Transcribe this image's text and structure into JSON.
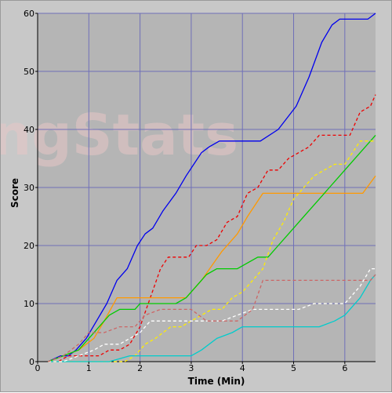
{
  "chart_data": {
    "type": "line",
    "title": "",
    "xlabel": "Time (Min)",
    "ylabel": "Score",
    "xlim": [
      0,
      6.6
    ],
    "ylim": [
      0,
      60
    ],
    "xticks": [
      0,
      1,
      2,
      3,
      4,
      5,
      6
    ],
    "yticks": [
      0,
      10,
      20,
      30,
      40,
      50,
      60
    ],
    "grid": true,
    "legend": "none",
    "watermark": "ngStats",
    "colors": {
      "background": "#c8c8c8",
      "plot_area": "#b5b5b5",
      "grid": "#6f6fb8"
    },
    "series": [
      {
        "color": "#0000ee",
        "dash": "solid",
        "x": [
          0.2,
          0.45,
          0.6,
          0.75,
          0.95,
          1.15,
          1.35,
          1.55,
          1.75,
          1.95,
          2.1,
          2.25,
          2.45,
          2.7,
          2.9,
          3.05,
          3.2,
          3.35,
          3.55,
          4.0,
          4.35,
          4.7,
          5.05,
          5.3,
          5.55,
          5.75,
          5.9,
          6.3,
          6.45,
          6.6
        ],
        "y": [
          0,
          1,
          1,
          2,
          4,
          7,
          10,
          14,
          16,
          20,
          22,
          23,
          26,
          29,
          32,
          34,
          36,
          37,
          38,
          38,
          38,
          40,
          44,
          49,
          55,
          58,
          59,
          59,
          59,
          60
        ]
      },
      {
        "color": "#ee0000",
        "dash": "dashed",
        "x": [
          0.2,
          0.4,
          0.6,
          0.8,
          1.0,
          1.2,
          1.4,
          1.6,
          1.8,
          2.0,
          2.2,
          2.4,
          2.55,
          2.75,
          2.95,
          3.1,
          3.3,
          3.5,
          3.7,
          3.9,
          4.1,
          4.3,
          4.5,
          4.7,
          4.9,
          5.1,
          5.3,
          5.5,
          5.7,
          5.9,
          6.1,
          6.3,
          6.5,
          6.6
        ],
        "y": [
          0,
          0,
          1,
          1,
          1,
          1,
          2,
          2,
          3,
          6,
          11,
          16,
          18,
          18,
          18,
          20,
          20,
          21,
          24,
          25,
          29,
          30,
          33,
          33,
          35,
          36,
          37,
          39,
          39,
          39,
          39,
          43,
          44,
          46
        ]
      },
      {
        "color": "#ff9900",
        "dash": "solid",
        "x": [
          0.2,
          0.5,
          0.8,
          1.1,
          1.3,
          1.55,
          2.0,
          2.5,
          2.9,
          3.2,
          3.6,
          3.9,
          4.1,
          4.4,
          5.0,
          5.5,
          6.0,
          6.35,
          6.6
        ],
        "y": [
          0,
          1,
          2,
          4,
          7,
          11,
          11,
          11,
          11,
          14,
          19,
          22,
          25,
          29,
          29,
          29,
          29,
          29,
          32
        ]
      },
      {
        "color": "#00cc00",
        "dash": "solid",
        "x": [
          0.2,
          0.5,
          0.8,
          1.0,
          1.2,
          1.4,
          1.6,
          1.9,
          2.0,
          2.3,
          2.5,
          2.7,
          2.9,
          3.1,
          3.3,
          3.5,
          3.7,
          3.9,
          4.1,
          4.3,
          4.5,
          4.7,
          4.9,
          5.1,
          5.3,
          5.5,
          5.7,
          5.9,
          6.1,
          6.3,
          6.5,
          6.6
        ],
        "y": [
          0,
          1,
          2,
          4,
          6,
          8,
          9,
          9,
          10,
          10,
          10,
          10,
          11,
          13,
          15,
          16,
          16,
          16,
          17,
          18,
          18,
          20,
          22,
          24,
          26,
          28,
          30,
          32,
          34,
          36,
          38,
          39
        ]
      },
      {
        "color": "#ffee00",
        "dash": "dashed",
        "x": [
          0.2,
          0.5,
          0.8,
          1.1,
          1.4,
          1.7,
          1.9,
          2.1,
          2.3,
          2.6,
          2.8,
          3.0,
          3.2,
          3.4,
          3.6,
          3.8,
          4.0,
          4.2,
          4.4,
          4.6,
          4.8,
          5.0,
          5.2,
          5.4,
          5.6,
          5.8,
          6.0,
          6.3,
          6.6
        ],
        "y": [
          0,
          0,
          0,
          0,
          0,
          0,
          1,
          3,
          4,
          6,
          6,
          7,
          8,
          9,
          9,
          11,
          12,
          14,
          16,
          21,
          24,
          28,
          30,
          32,
          33,
          34,
          34,
          38,
          38
        ]
      },
      {
        "color": "#00cccc",
        "dash": "solid",
        "x": [
          0.2,
          0.6,
          1.0,
          1.4,
          1.8,
          2.2,
          2.6,
          3.0,
          3.2,
          3.5,
          3.8,
          4.0,
          4.3,
          4.7,
          5.2,
          5.5,
          5.8,
          6.0,
          6.3,
          6.5,
          6.6
        ],
        "y": [
          0,
          0,
          0,
          0,
          1,
          1,
          1,
          1,
          2,
          4,
          5,
          6,
          6,
          6,
          6,
          6,
          7,
          8,
          11,
          14,
          15
        ]
      },
      {
        "color": "#ffffff",
        "dash": "dashed",
        "x": [
          0.2,
          0.5,
          0.8,
          1.1,
          1.3,
          1.6,
          1.8,
          2.0,
          2.2,
          2.5,
          2.8,
          3.0,
          3.3,
          3.6,
          3.9,
          4.2,
          4.5,
          4.8,
          5.1,
          5.4,
          5.7,
          6.0,
          6.3,
          6.5,
          6.6
        ],
        "y": [
          0,
          0,
          1,
          2,
          3,
          3,
          4,
          5,
          7,
          7,
          7,
          7,
          7,
          7,
          8,
          9,
          9,
          9,
          9,
          10,
          10,
          10,
          13,
          16,
          16
        ]
      },
      {
        "color": "#cc6666",
        "dash": "dashed",
        "x": [
          0.2,
          0.5,
          0.8,
          1.0,
          1.3,
          1.6,
          1.9,
          2.1,
          2.4,
          2.7,
          3.0,
          3.3,
          3.6,
          3.9,
          4.2,
          4.4,
          4.7,
          5.0,
          5.3,
          5.6,
          5.9,
          6.2,
          6.5,
          6.6
        ],
        "y": [
          0,
          1,
          3,
          5,
          5,
          6,
          6,
          8,
          9,
          9,
          9,
          7,
          7,
          7,
          9,
          14,
          14,
          14,
          14,
          14,
          14,
          14,
          14,
          15
        ]
      }
    ]
  }
}
